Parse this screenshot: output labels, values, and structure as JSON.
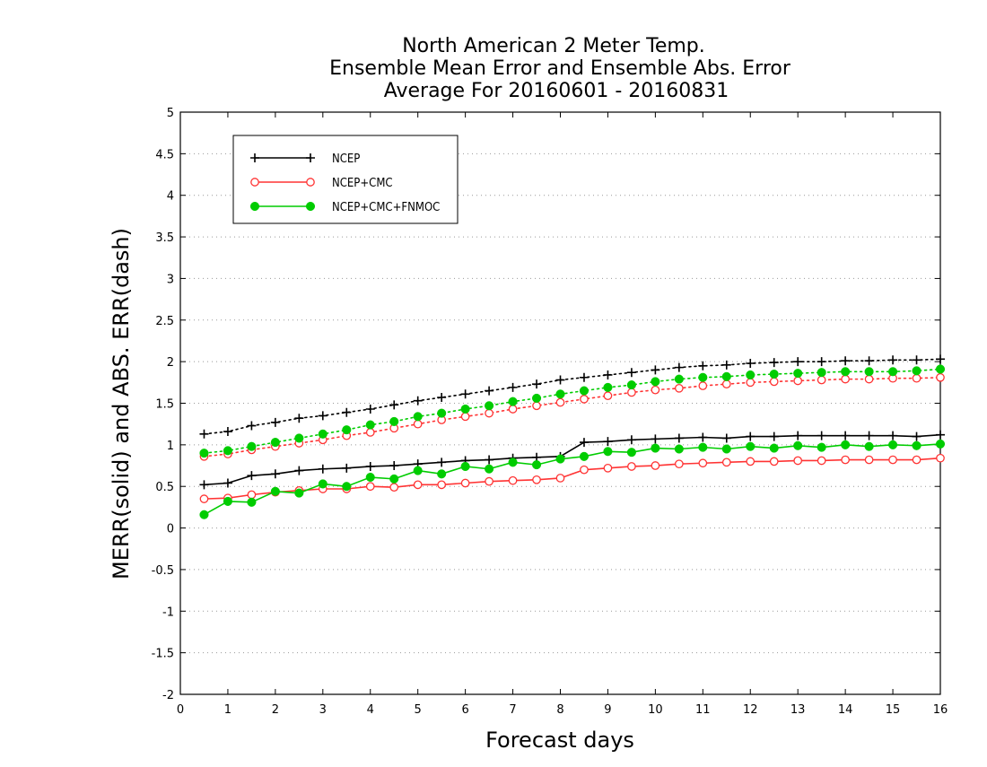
{
  "chart_data": {
    "type": "line",
    "title": [
      "North American 2 Meter Temp.",
      "Ensemble Mean Error and Ensemble Abs. Error",
      "Average For 20160601 - 20160831"
    ],
    "xlabel": "Forecast days",
    "ylabel": "MERR(solid) and ABS. ERR(dash)",
    "xlim": [
      0,
      16
    ],
    "ylim": [
      -2,
      5
    ],
    "xticks": [
      "0",
      "1",
      "2",
      "3",
      "4",
      "5",
      "6",
      "7",
      "8",
      "9",
      "10",
      "11",
      "12",
      "13",
      "14",
      "15",
      "16"
    ],
    "yticks": [
      "-2",
      "-1.5",
      "-1",
      "-0.5",
      "0",
      "0.5",
      "1",
      "1.5",
      "2",
      "2.5",
      "3",
      "3.5",
      "4",
      "4.5",
      "5"
    ],
    "grid": "horizontal dotted",
    "legend_position": "top-left",
    "x": [
      0.5,
      1.0,
      1.5,
      2.0,
      2.5,
      3.0,
      3.5,
      4.0,
      4.5,
      5.0,
      5.5,
      6.0,
      6.5,
      7.0,
      7.5,
      8.0,
      8.5,
      9.0,
      9.5,
      10.0,
      10.5,
      11.0,
      11.5,
      12.0,
      12.5,
      13.0,
      13.5,
      14.0,
      14.5,
      15.0,
      15.5,
      16.0
    ],
    "series": [
      {
        "name": "NCEP",
        "color": "#000000",
        "marker": "plus",
        "merr": [
          0.52,
          0.54,
          0.63,
          0.65,
          0.69,
          0.71,
          0.72,
          0.74,
          0.75,
          0.77,
          0.79,
          0.81,
          0.82,
          0.84,
          0.85,
          0.86,
          1.03,
          1.04,
          1.06,
          1.07,
          1.08,
          1.09,
          1.08,
          1.1,
          1.1,
          1.11,
          1.11,
          1.11,
          1.11,
          1.11,
          1.1,
          1.12
        ],
        "abs_err": [
          1.13,
          1.16,
          1.23,
          1.27,
          1.32,
          1.35,
          1.39,
          1.43,
          1.48,
          1.53,
          1.57,
          1.61,
          1.65,
          1.69,
          1.73,
          1.78,
          1.81,
          1.84,
          1.87,
          1.9,
          1.93,
          1.95,
          1.96,
          1.98,
          1.99,
          2.0,
          2.0,
          2.01,
          2.01,
          2.02,
          2.02,
          2.03
        ]
      },
      {
        "name": "NCEP+CMC",
        "color": "#ff3333",
        "marker": "open-circle",
        "merr": [
          0.35,
          0.36,
          0.4,
          0.43,
          0.45,
          0.47,
          0.47,
          0.5,
          0.49,
          0.52,
          0.52,
          0.54,
          0.56,
          0.57,
          0.58,
          0.6,
          0.7,
          0.72,
          0.74,
          0.75,
          0.77,
          0.78,
          0.79,
          0.8,
          0.8,
          0.81,
          0.81,
          0.82,
          0.82,
          0.82,
          0.82,
          0.84
        ],
        "abs_err": [
          0.86,
          0.89,
          0.94,
          0.98,
          1.02,
          1.06,
          1.11,
          1.15,
          1.2,
          1.25,
          1.3,
          1.34,
          1.38,
          1.43,
          1.47,
          1.51,
          1.55,
          1.59,
          1.63,
          1.66,
          1.68,
          1.71,
          1.73,
          1.75,
          1.76,
          1.77,
          1.78,
          1.79,
          1.79,
          1.8,
          1.8,
          1.81
        ]
      },
      {
        "name": "NCEP+CMC+FNMOC",
        "color": "#00cc00",
        "marker": "filled-circle",
        "merr": [
          0.16,
          0.32,
          0.31,
          0.44,
          0.42,
          0.53,
          0.5,
          0.61,
          0.59,
          0.69,
          0.65,
          0.74,
          0.71,
          0.79,
          0.76,
          0.83,
          0.86,
          0.92,
          0.91,
          0.96,
          0.95,
          0.97,
          0.95,
          0.98,
          0.96,
          0.99,
          0.97,
          1.0,
          0.98,
          1.0,
          0.99,
          1.01
        ],
        "abs_err": [
          0.9,
          0.93,
          0.98,
          1.03,
          1.08,
          1.13,
          1.18,
          1.24,
          1.28,
          1.34,
          1.38,
          1.43,
          1.47,
          1.52,
          1.56,
          1.61,
          1.65,
          1.69,
          1.72,
          1.76,
          1.79,
          1.81,
          1.82,
          1.84,
          1.85,
          1.86,
          1.87,
          1.88,
          1.88,
          1.88,
          1.89,
          1.91
        ]
      }
    ]
  }
}
